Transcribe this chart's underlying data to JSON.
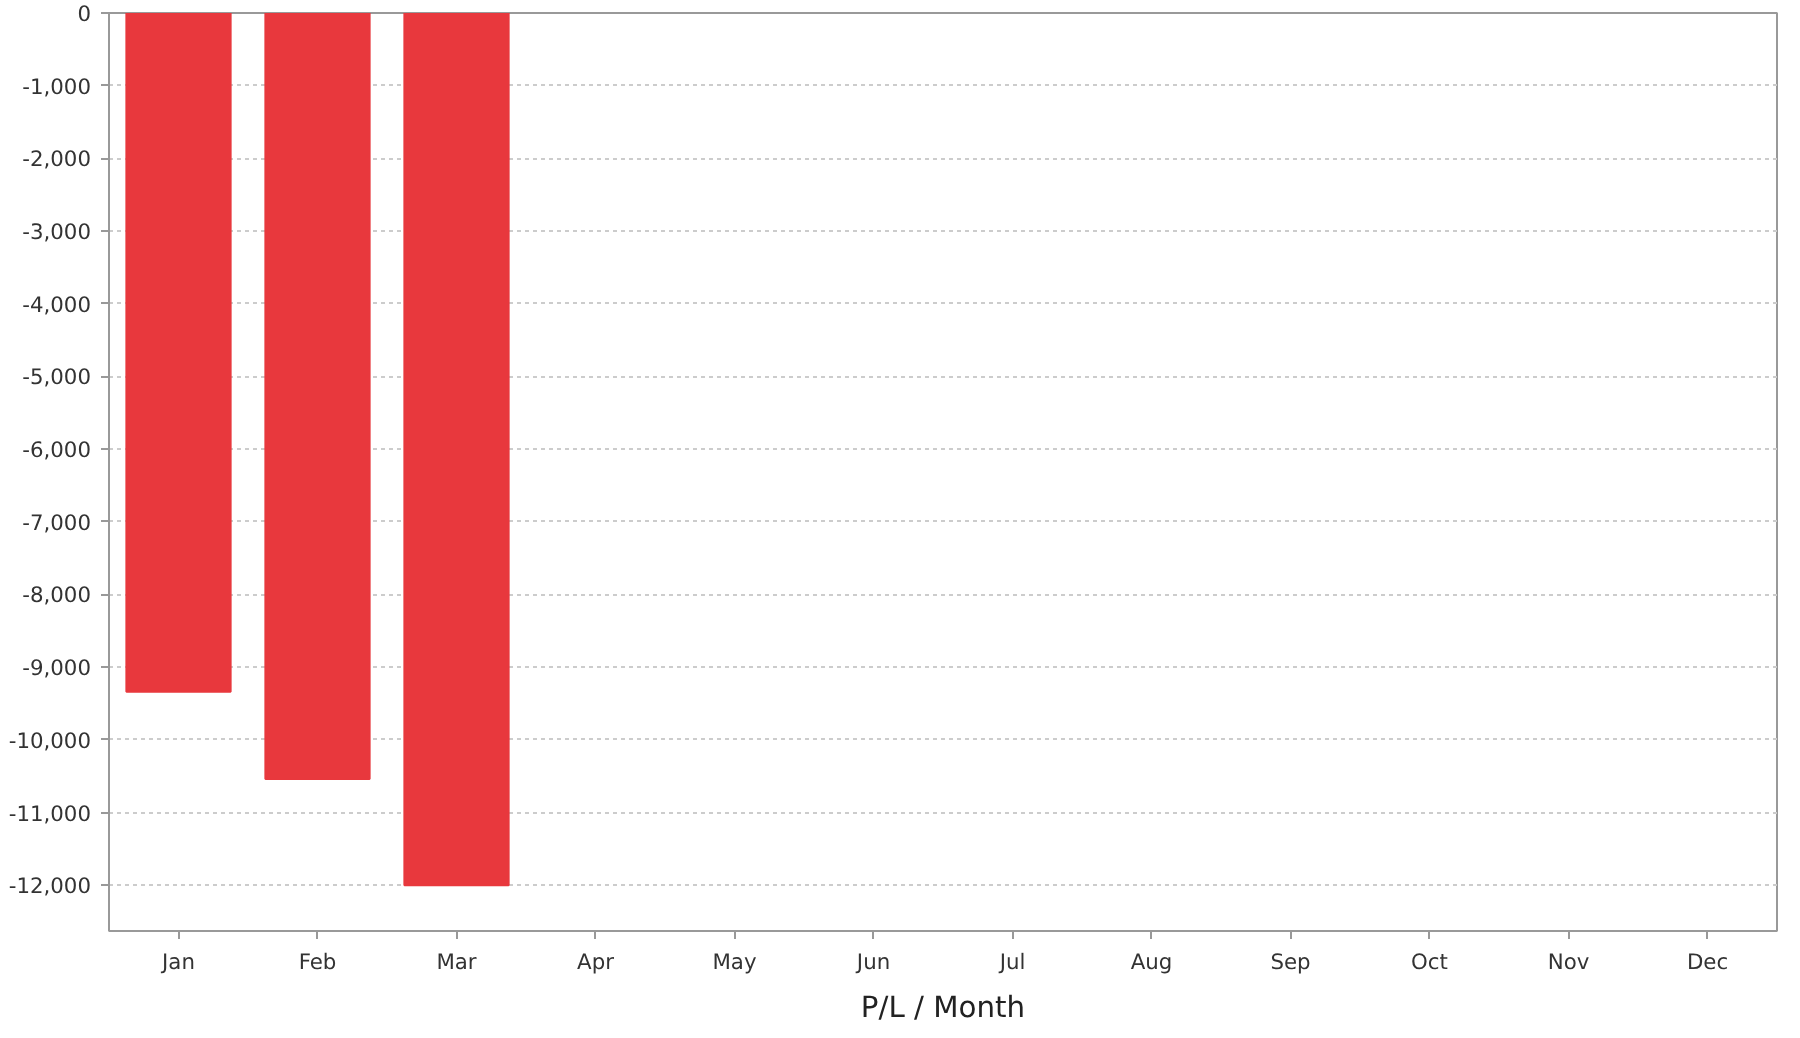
{
  "chart_data": {
    "type": "bar",
    "xlabel": "P/L / Month",
    "categories": [
      "Jan",
      "Feb",
      "Mar",
      "Apr",
      "May",
      "Jun",
      "Jul",
      "Aug",
      "Sep",
      "Oct",
      "Nov",
      "Dec"
    ],
    "values": [
      -9340,
      -10540,
      -12000,
      null,
      null,
      null,
      null,
      null,
      null,
      null,
      null,
      null
    ],
    "color": "#e8383d",
    "ylim": [
      -12630,
      0
    ],
    "yticks": [
      {
        "value": 0,
        "label": "0"
      },
      {
        "value": -1000,
        "label": "-1,000"
      },
      {
        "value": -2000,
        "label": "-2,000"
      },
      {
        "value": -3000,
        "label": "-3,000"
      },
      {
        "value": -4000,
        "label": "-4,000"
      },
      {
        "value": -5000,
        "label": "-5,000"
      },
      {
        "value": -6000,
        "label": "-6,000"
      },
      {
        "value": -7000,
        "label": "-7,000"
      },
      {
        "value": -8000,
        "label": "-8,000"
      },
      {
        "value": -9000,
        "label": "-9,000"
      },
      {
        "value": -10000,
        "label": "-10,000"
      },
      {
        "value": -11000,
        "label": "-11,000"
      },
      {
        "value": -12000,
        "label": "-12,000"
      }
    ],
    "grid": "y"
  }
}
